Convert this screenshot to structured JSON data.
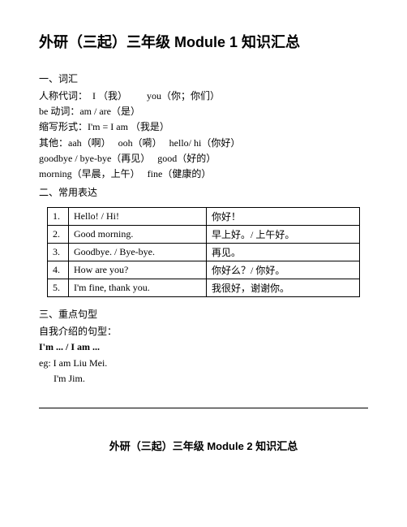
{
  "title": "外研（三起）三年级 Module 1 知识汇总",
  "section1": {
    "heading": "一、词汇",
    "lines": [
      "人称代词：  I （我）        you（你；你们）",
      "be 动词：am / are（是）",
      "缩写形式：I'm = I am （我是）",
      "其他：aah（啊）   ooh（嗬）   hello/ hi（你好）",
      "goodbye / bye-bye（再见）   good（好的）",
      "morning（早晨，上午）   fine（健康的）"
    ]
  },
  "section2": {
    "heading": "二、常用表达",
    "rows": [
      {
        "n": "1.",
        "en": "Hello! / Hi!",
        "cn": "你好！"
      },
      {
        "n": "2.",
        "en": "Good morning.",
        "cn": "早上好。/ 上午好。"
      },
      {
        "n": "3.",
        "en": "Goodbye. / Bye-bye.",
        "cn": "再见。"
      },
      {
        "n": "4.",
        "en": "How are you?",
        "cn": "你好么？/ 你好。"
      },
      {
        "n": "5.",
        "en": "I'm fine, thank you.",
        "cn": "我很好，谢谢你。"
      }
    ]
  },
  "section3": {
    "heading": "三、重点句型",
    "lines": [
      "自我介绍的句型：",
      "I'm ... / I am ...",
      "eg: I am Liu Mei.",
      "      I'm Jim."
    ],
    "bold_index": 1
  },
  "footer_title": "外研（三起）三年级 Module 2 知识汇总"
}
